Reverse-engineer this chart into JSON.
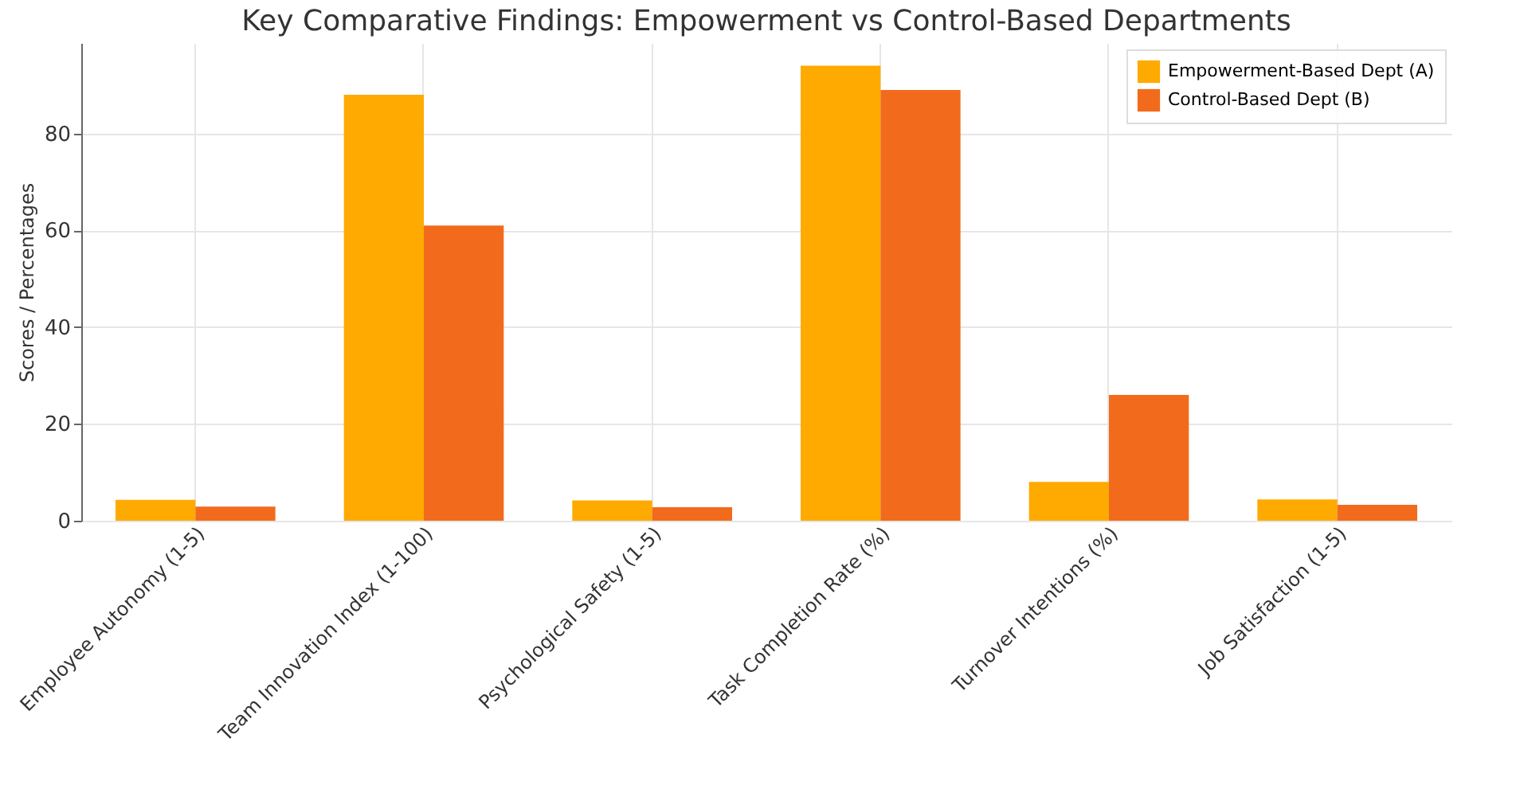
{
  "chart_data": {
    "type": "bar",
    "title": "Key Comparative Findings: Empowerment vs Control-Based Departments",
    "ylabel": "Scores / Percentages",
    "categories": [
      "Employee Autonomy (1-5)",
      "Team Innovation Index (1-100)",
      "Psychological Safety (1-5)",
      "Task Completion Rate (%)",
      "Turnover Intentions (%)",
      "Job Satisfaction (1-5)"
    ],
    "series": [
      {
        "name": "Empowerment-Based Dept (A)",
        "color": "#ffaa00",
        "values": [
          4.3,
          88,
          4.2,
          94,
          8,
          4.4
        ]
      },
      {
        "name": "Control-Based Dept (B)",
        "color": "#f26b1d",
        "values": [
          2.9,
          61,
          2.8,
          89,
          26,
          3.3
        ]
      }
    ],
    "ylim": [
      0,
      98.7
    ],
    "yticks": [
      0,
      20,
      40,
      60,
      80
    ],
    "grid": true,
    "legend": "top right"
  }
}
